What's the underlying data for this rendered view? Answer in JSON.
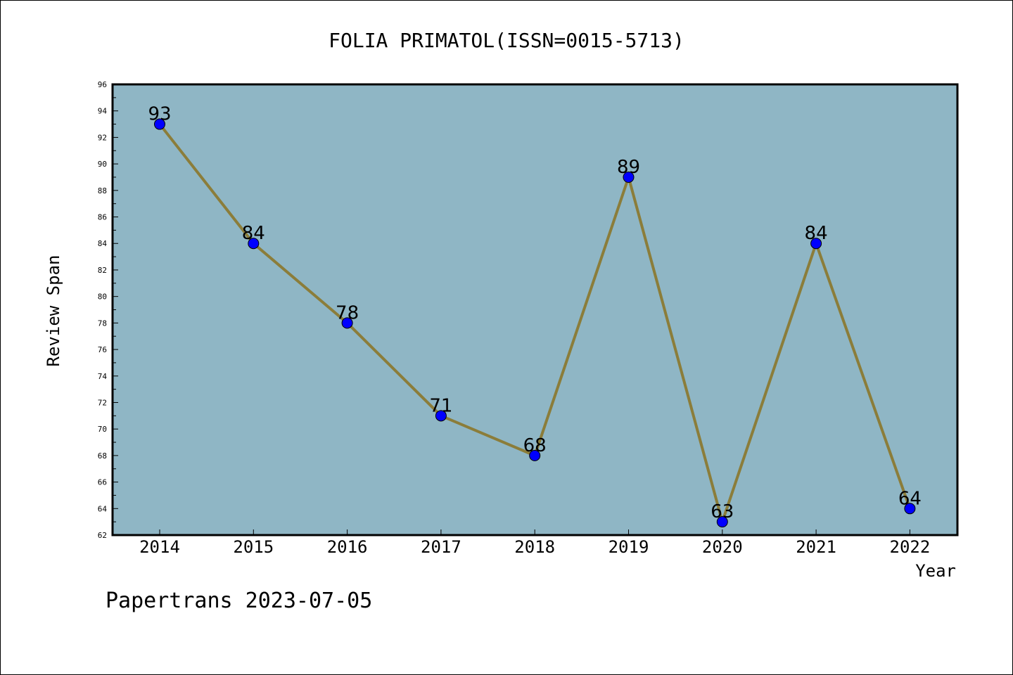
{
  "chart_data": {
    "type": "line",
    "title": "FOLIA PRIMATOL(ISSN=0015-5713)",
    "xlabel": "Year",
    "ylabel": "Review Span",
    "categories": [
      "2014",
      "2015",
      "2016",
      "2017",
      "2018",
      "2019",
      "2020",
      "2021",
      "2022"
    ],
    "values": [
      93,
      84,
      78,
      71,
      68,
      89,
      63,
      84,
      64
    ],
    "ylim": [
      62,
      96
    ],
    "ytick_labels": [
      "62",
      "64",
      "66",
      "68",
      "70",
      "72",
      "74",
      "76",
      "78",
      "80",
      "82",
      "84",
      "86",
      "88",
      "90",
      "92",
      "94",
      "96"
    ],
    "grid": false,
    "plot_background": "#8fb6c5",
    "line_color": "#8b7d3a",
    "marker_color": "#0000ff",
    "footer": "Papertrans 2023-07-05"
  }
}
